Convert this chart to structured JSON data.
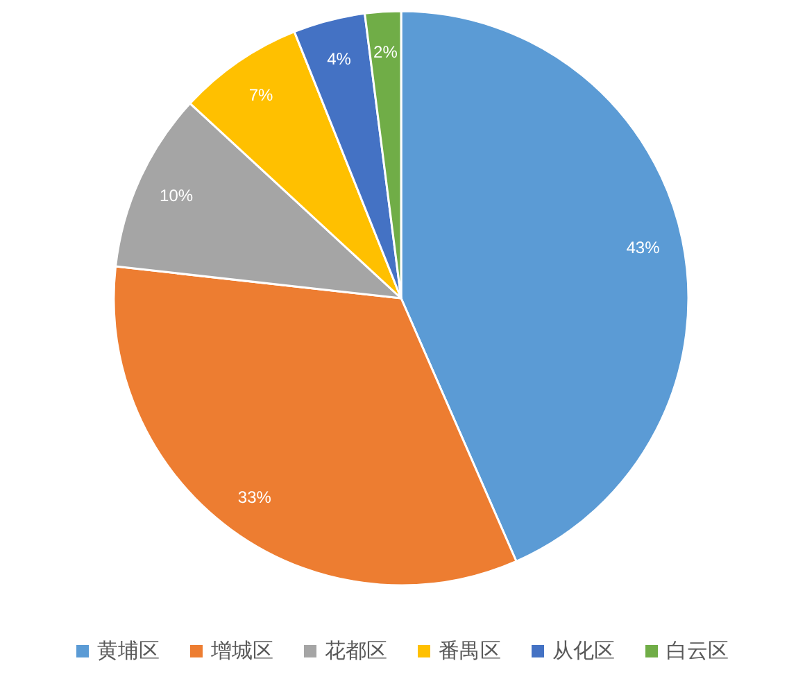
{
  "chart_data": {
    "type": "pie",
    "categories": [
      "黄埔区",
      "增城区",
      "花都区",
      "番禺区",
      "从化区",
      "白云区"
    ],
    "values": [
      43,
      33,
      10,
      7,
      4,
      2
    ],
    "colors": [
      "#5b9bd5",
      "#ed7d31",
      "#a5a5a5",
      "#ffc000",
      "#4472c4",
      "#70ad47"
    ],
    "value_labels": [
      "43%",
      "33%",
      "10%",
      "7%",
      "4%",
      "2%"
    ],
    "legend": "bottom"
  }
}
